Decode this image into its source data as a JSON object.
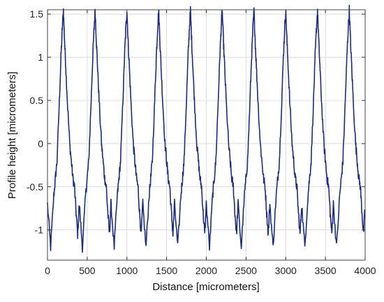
{
  "chart_data": {
    "type": "line",
    "title": "",
    "xlabel": "Distance [micrometers]",
    "ylabel": "Profile height [micrometers]",
    "xlim": [
      0,
      4000
    ],
    "ylim": [
      -1.35,
      1.55
    ],
    "xticks": [
      0,
      500,
      1000,
      1500,
      2000,
      2500,
      3000,
      3500,
      4000
    ],
    "xtick_labels": [
      "0",
      "500",
      "1000",
      "1500",
      "2000",
      "2500",
      "3000",
      "3500",
      "4000"
    ],
    "yticks": [
      -1,
      -0.5,
      0,
      0.5,
      1,
      1.5
    ],
    "ytick_labels": [
      "-1",
      "-0.5",
      "0",
      "0.5",
      "1",
      "1.5"
    ],
    "grid": true,
    "legend": "none",
    "series": [
      {
        "color": "#1a2a8c",
        "period": 400,
        "x": [
          0,
          40,
          80,
          100,
          120,
          150,
          170,
          185,
          200,
          215,
          230,
          250,
          280,
          300,
          320,
          340,
          360,
          380,
          400
        ],
        "y": [
          -0.7,
          -1.2,
          -0.6,
          -0.4,
          -0.2,
          0.5,
          1.0,
          1.3,
          1.55,
          1.2,
          0.9,
          0.5,
          0.0,
          -0.2,
          -0.4,
          -0.5,
          -0.8,
          -1.05,
          -0.7
        ],
        "cycles": 10
      }
    ]
  },
  "colors": {
    "line": "#1a2a8c",
    "grid": "#dcdcdc",
    "frame": "#444444"
  }
}
